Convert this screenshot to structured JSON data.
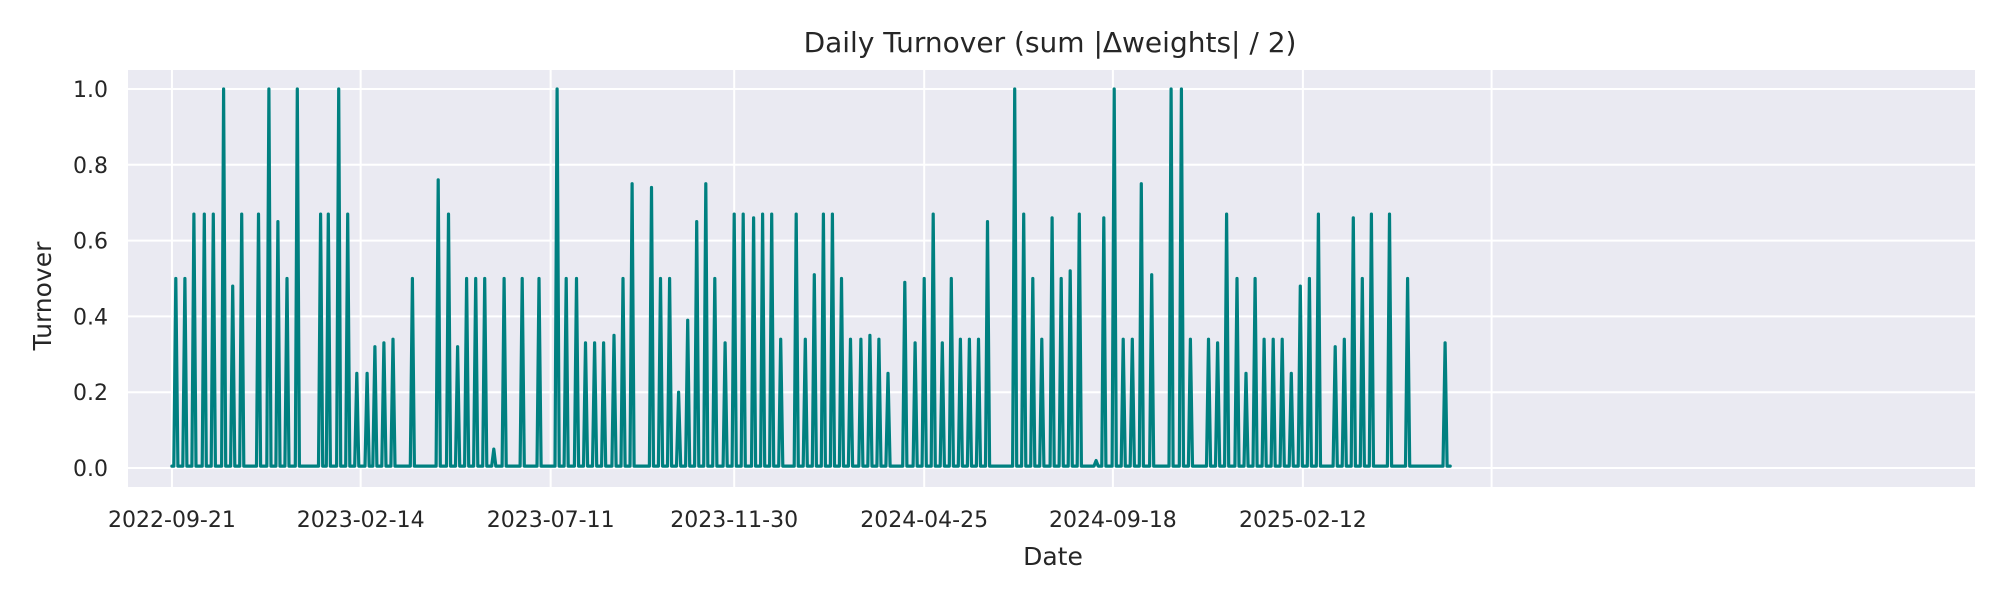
{
  "chart_data": {
    "type": "line",
    "title": "Daily Turnover (sum |Δweights| / 2)",
    "xlabel": "Date",
    "ylabel": "Turnover",
    "ylim": [
      -0.05,
      1.05
    ],
    "xlim_days": [
      -34,
      1395
    ],
    "origin_date": "2022-09-21",
    "x_ticks": [
      {
        "label": "2022-09-21",
        "day": 0
      },
      {
        "label": "2023-02-14",
        "day": 146
      },
      {
        "label": "2023-07-11",
        "day": 293
      },
      {
        "label": "2023-11-30",
        "day": 435
      },
      {
        "label": "2024-04-25",
        "day": 582
      },
      {
        "label": "2024-09-18",
        "day": 728
      },
      {
        "label": "2025-02-12",
        "day": 875
      }
    ],
    "y_ticks": [
      {
        "label": "0.0",
        "value": 0.0
      },
      {
        "label": "0.2",
        "value": 0.2
      },
      {
        "label": "0.4",
        "value": 0.4
      },
      {
        "label": "0.6",
        "value": 0.6
      },
      {
        "label": "0.8",
        "value": 0.8
      },
      {
        "label": "1.0",
        "value": 1.0
      }
    ],
    "grid": true,
    "line_color": "#008080",
    "baseline_value": 0.005,
    "series_name": "Turnover",
    "spikes": [
      {
        "day": 3,
        "value": 0.5
      },
      {
        "day": 10,
        "value": 0.5
      },
      {
        "day": 17,
        "value": 0.67
      },
      {
        "day": 25,
        "value": 0.67
      },
      {
        "day": 32,
        "value": 0.67
      },
      {
        "day": 40,
        "value": 1.0
      },
      {
        "day": 47,
        "value": 0.48
      },
      {
        "day": 54,
        "value": 0.67
      },
      {
        "day": 67,
        "value": 0.67
      },
      {
        "day": 75,
        "value": 1.0
      },
      {
        "day": 82,
        "value": 0.65
      },
      {
        "day": 89,
        "value": 0.5
      },
      {
        "day": 97,
        "value": 1.0
      },
      {
        "day": 115,
        "value": 0.67
      },
      {
        "day": 121,
        "value": 0.67
      },
      {
        "day": 129,
        "value": 1.0
      },
      {
        "day": 136,
        "value": 0.67
      },
      {
        "day": 143,
        "value": 0.25
      },
      {
        "day": 151,
        "value": 0.25
      },
      {
        "day": 157,
        "value": 0.32
      },
      {
        "day": 164,
        "value": 0.33
      },
      {
        "day": 171,
        "value": 0.34
      },
      {
        "day": 186,
        "value": 0.5
      },
      {
        "day": 206,
        "value": 0.76
      },
      {
        "day": 214,
        "value": 0.67
      },
      {
        "day": 221,
        "value": 0.32
      },
      {
        "day": 228,
        "value": 0.5
      },
      {
        "day": 235,
        "value": 0.5
      },
      {
        "day": 242,
        "value": 0.5
      },
      {
        "day": 249,
        "value": 0.05
      },
      {
        "day": 257,
        "value": 0.5
      },
      {
        "day": 271,
        "value": 0.5
      },
      {
        "day": 284,
        "value": 0.5
      },
      {
        "day": 298,
        "value": 1.0
      },
      {
        "day": 305,
        "value": 0.5
      },
      {
        "day": 313,
        "value": 0.5
      },
      {
        "day": 320,
        "value": 0.33
      },
      {
        "day": 327,
        "value": 0.33
      },
      {
        "day": 334,
        "value": 0.33
      },
      {
        "day": 342,
        "value": 0.35
      },
      {
        "day": 349,
        "value": 0.5
      },
      {
        "day": 356,
        "value": 0.75
      },
      {
        "day": 371,
        "value": 0.74
      },
      {
        "day": 378,
        "value": 0.5
      },
      {
        "day": 385,
        "value": 0.5
      },
      {
        "day": 392,
        "value": 0.2
      },
      {
        "day": 399,
        "value": 0.39
      },
      {
        "day": 406,
        "value": 0.65
      },
      {
        "day": 413,
        "value": 0.75
      },
      {
        "day": 420,
        "value": 0.5
      },
      {
        "day": 428,
        "value": 0.33
      },
      {
        "day": 435,
        "value": 0.67
      },
      {
        "day": 442,
        "value": 0.67
      },
      {
        "day": 450,
        "value": 0.66
      },
      {
        "day": 457,
        "value": 0.67
      },
      {
        "day": 464,
        "value": 0.67
      },
      {
        "day": 471,
        "value": 0.34
      },
      {
        "day": 483,
        "value": 0.67
      },
      {
        "day": 490,
        "value": 0.34
      },
      {
        "day": 497,
        "value": 0.51
      },
      {
        "day": 504,
        "value": 0.67
      },
      {
        "day": 511,
        "value": 0.67
      },
      {
        "day": 518,
        "value": 0.5
      },
      {
        "day": 525,
        "value": 0.34
      },
      {
        "day": 533,
        "value": 0.34
      },
      {
        "day": 540,
        "value": 0.35
      },
      {
        "day": 547,
        "value": 0.34
      },
      {
        "day": 554,
        "value": 0.25
      },
      {
        "day": 567,
        "value": 0.49
      },
      {
        "day": 575,
        "value": 0.33
      },
      {
        "day": 582,
        "value": 0.5
      },
      {
        "day": 589,
        "value": 0.67
      },
      {
        "day": 596,
        "value": 0.33
      },
      {
        "day": 603,
        "value": 0.5
      },
      {
        "day": 610,
        "value": 0.34
      },
      {
        "day": 617,
        "value": 0.34
      },
      {
        "day": 624,
        "value": 0.34
      },
      {
        "day": 631,
        "value": 0.65
      },
      {
        "day": 652,
        "value": 1.0
      },
      {
        "day": 659,
        "value": 0.67
      },
      {
        "day": 666,
        "value": 0.5
      },
      {
        "day": 673,
        "value": 0.34
      },
      {
        "day": 681,
        "value": 0.66
      },
      {
        "day": 688,
        "value": 0.5
      },
      {
        "day": 695,
        "value": 0.52
      },
      {
        "day": 702,
        "value": 0.67
      },
      {
        "day": 715,
        "value": 0.02
      },
      {
        "day": 721,
        "value": 0.66
      },
      {
        "day": 729,
        "value": 1.0
      },
      {
        "day": 736,
        "value": 0.34
      },
      {
        "day": 743,
        "value": 0.34
      },
      {
        "day": 750,
        "value": 0.75
      },
      {
        "day": 758,
        "value": 0.51
      },
      {
        "day": 773,
        "value": 1.0
      },
      {
        "day": 781,
        "value": 1.0
      },
      {
        "day": 788,
        "value": 0.34
      },
      {
        "day": 802,
        "value": 0.34
      },
      {
        "day": 809,
        "value": 0.33
      },
      {
        "day": 816,
        "value": 0.67
      },
      {
        "day": 824,
        "value": 0.5
      },
      {
        "day": 831,
        "value": 0.25
      },
      {
        "day": 838,
        "value": 0.5
      },
      {
        "day": 845,
        "value": 0.34
      },
      {
        "day": 852,
        "value": 0.34
      },
      {
        "day": 859,
        "value": 0.34
      },
      {
        "day": 866,
        "value": 0.25
      },
      {
        "day": 873,
        "value": 0.48
      },
      {
        "day": 880,
        "value": 0.5
      },
      {
        "day": 887,
        "value": 0.67
      },
      {
        "day": 900,
        "value": 0.32
      },
      {
        "day": 907,
        "value": 0.34
      },
      {
        "day": 914,
        "value": 0.66
      },
      {
        "day": 921,
        "value": 0.5
      },
      {
        "day": 928,
        "value": 0.67
      },
      {
        "day": 942,
        "value": 0.67
      },
      {
        "day": 956,
        "value": 0.5
      },
      {
        "day": 985,
        "value": 0.33
      }
    ],
    "x_end_day": 989
  }
}
